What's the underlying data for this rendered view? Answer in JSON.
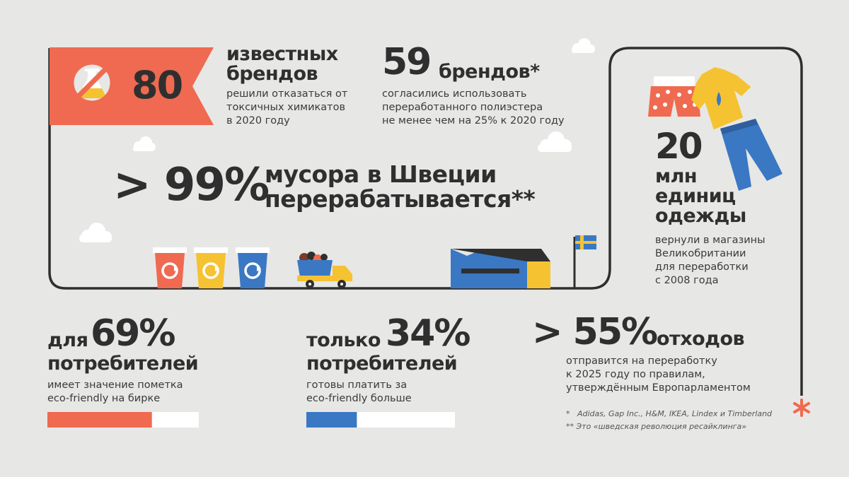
{
  "colors": {
    "background": "#e7e7e5",
    "orange": "#ef6a50",
    "blue": "#3a78c4",
    "yellow": "#f5c232",
    "dark": "#2f2f30"
  },
  "stat_80": {
    "number": "80",
    "line1": "известных",
    "line2": "брендов",
    "desc1": "решили отказаться от",
    "desc2": "токсичных химикатов",
    "desc3": "в 2020 году",
    "icon": "no-chemicals-icon"
  },
  "stat_59": {
    "number": "59",
    "unit": "брендов*",
    "desc1": "согласились использовать",
    "desc2": "переработанного полиэстера",
    "desc3": "не менее чем на 25% к 2020 году"
  },
  "stat_99": {
    "number": "> 99%",
    "line1": "мусора в Швеции",
    "line2": "перерабатывается**"
  },
  "stat_20": {
    "number": "20",
    "line1": "млн",
    "line2": "единиц",
    "line3": "одежды",
    "desc1": "вернули в магазины",
    "desc2": "Великобритании",
    "desc3": "для переработки",
    "desc4": "с 2008 года"
  },
  "stat_69": {
    "prefix": "для",
    "number": "69%",
    "line2": "потребителей",
    "desc1": "имеет значение пометка",
    "desc2": "eco-friendly на бирке",
    "bar_fraction": 0.69,
    "bar_color": "#ef6a50"
  },
  "stat_34": {
    "prefix": "только",
    "number": "34%",
    "line2": "потребителей",
    "desc1": "готовы платить за",
    "desc2": "eco-friendly больше",
    "bar_fraction": 0.34,
    "bar_color": "#3a78c4"
  },
  "stat_55": {
    "number": "> 55%",
    "unit": "отходов",
    "desc1": "отправится на переработку",
    "desc2": "к 2025 году по правилам,",
    "desc3": "утверждённым Европарламентом"
  },
  "footnotes": {
    "note1": "*   Adidas, Gap Inc., H&M, IKEA, Lindex и Timberland",
    "note2": "** Это «шведская революция ресайклинга»"
  },
  "icons": [
    "recycle-bin-icon",
    "garbage-truck-icon",
    "factory-icon",
    "sweden-flag-icon",
    "cloud-icon",
    "shorts-icon",
    "tshirt-icon",
    "jeans-icon",
    "asterisk-icon"
  ]
}
